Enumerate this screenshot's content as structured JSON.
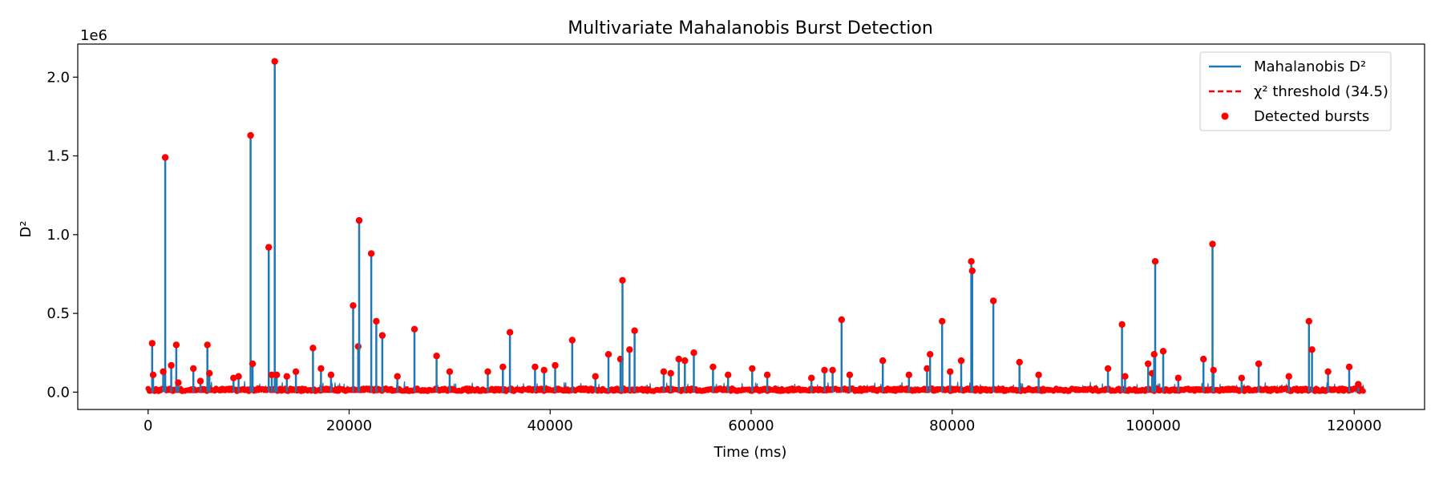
{
  "chart_data": {
    "type": "line",
    "title": "Multivariate Mahalanobis Burst Detection",
    "xlabel": "Time (ms)",
    "ylabel": "D²",
    "y_offset_label": "1e6",
    "xlim": [
      -7000,
      127000
    ],
    "ylim": [
      -0.11,
      2.21
    ],
    "x_ticks": [
      0,
      20000,
      40000,
      60000,
      80000,
      100000,
      120000
    ],
    "x_tick_labels": [
      "0",
      "20000",
      "40000",
      "60000",
      "80000",
      "100000",
      "120000"
    ],
    "y_ticks": [
      0.0,
      0.5,
      1.0,
      1.5,
      2.0
    ],
    "y_tick_labels": [
      "0.0",
      "0.5",
      "1.0",
      "1.5",
      "2.0"
    ],
    "y_value_units": "×1e6",
    "threshold": 34.5,
    "grid": false,
    "legend_position": "top-right",
    "legend": [
      "Mahalanobis D²",
      "χ² threshold (34.5)",
      "Detected bursts"
    ],
    "colors": {
      "line": "#1f77b4",
      "threshold": "#ff0000",
      "bursts": "#ff0000"
    },
    "x_max": 121000,
    "series": [
      {
        "name": "Mahalanobis D²",
        "spikes": [
          [
            400,
            0.31
          ],
          [
            500,
            0.11
          ],
          [
            1700,
            1.49
          ],
          [
            1500,
            0.13
          ],
          [
            2300,
            0.17
          ],
          [
            2800,
            0.3
          ],
          [
            3000,
            0.06
          ],
          [
            4500,
            0.15
          ],
          [
            5200,
            0.07
          ],
          [
            5900,
            0.3
          ],
          [
            6100,
            0.12
          ],
          [
            8500,
            0.09
          ],
          [
            9000,
            0.1
          ],
          [
            10200,
            1.63
          ],
          [
            10400,
            0.18
          ],
          [
            12000,
            0.92
          ],
          [
            12300,
            0.11
          ],
          [
            12600,
            2.1
          ],
          [
            12800,
            0.11
          ],
          [
            13800,
            0.1
          ],
          [
            14700,
            0.13
          ],
          [
            16400,
            0.28
          ],
          [
            17200,
            0.15
          ],
          [
            18200,
            0.11
          ],
          [
            20400,
            0.55
          ],
          [
            20900,
            0.29
          ],
          [
            21000,
            1.09
          ],
          [
            22200,
            0.88
          ],
          [
            22700,
            0.45
          ],
          [
            23300,
            0.36
          ],
          [
            24800,
            0.1
          ],
          [
            26500,
            0.4
          ],
          [
            28700,
            0.23
          ],
          [
            30000,
            0.13
          ],
          [
            33800,
            0.13
          ],
          [
            35300,
            0.16
          ],
          [
            36000,
            0.38
          ],
          [
            38500,
            0.16
          ],
          [
            39400,
            0.14
          ],
          [
            40500,
            0.17
          ],
          [
            42200,
            0.33
          ],
          [
            44500,
            0.1
          ],
          [
            45800,
            0.24
          ],
          [
            47000,
            0.21
          ],
          [
            47200,
            0.71
          ],
          [
            47900,
            0.27
          ],
          [
            48400,
            0.39
          ],
          [
            51300,
            0.13
          ],
          [
            52000,
            0.12
          ],
          [
            52800,
            0.21
          ],
          [
            53400,
            0.2
          ],
          [
            54300,
            0.25
          ],
          [
            56200,
            0.16
          ],
          [
            57700,
            0.11
          ],
          [
            60100,
            0.15
          ],
          [
            61600,
            0.11
          ],
          [
            66000,
            0.09
          ],
          [
            67300,
            0.14
          ],
          [
            68100,
            0.14
          ],
          [
            69000,
            0.46
          ],
          [
            69800,
            0.11
          ],
          [
            73100,
            0.2
          ],
          [
            75700,
            0.11
          ],
          [
            77500,
            0.15
          ],
          [
            77800,
            0.24
          ],
          [
            79000,
            0.45
          ],
          [
            79800,
            0.13
          ],
          [
            80900,
            0.2
          ],
          [
            81900,
            0.83
          ],
          [
            82000,
            0.77
          ],
          [
            84100,
            0.58
          ],
          [
            86700,
            0.19
          ],
          [
            88600,
            0.11
          ],
          [
            95500,
            0.15
          ],
          [
            96900,
            0.43
          ],
          [
            97200,
            0.1
          ],
          [
            99500,
            0.18
          ],
          [
            99900,
            0.12
          ],
          [
            100200,
            0.83
          ],
          [
            100100,
            0.24
          ],
          [
            101000,
            0.26
          ],
          [
            102500,
            0.09
          ],
          [
            105000,
            0.21
          ],
          [
            105900,
            0.94
          ],
          [
            106000,
            0.14
          ],
          [
            108800,
            0.09
          ],
          [
            110500,
            0.18
          ],
          [
            113500,
            0.1
          ],
          [
            115500,
            0.45
          ],
          [
            115800,
            0.27
          ],
          [
            117400,
            0.13
          ],
          [
            119500,
            0.16
          ],
          [
            120400,
            0.05
          ]
        ]
      }
    ]
  }
}
